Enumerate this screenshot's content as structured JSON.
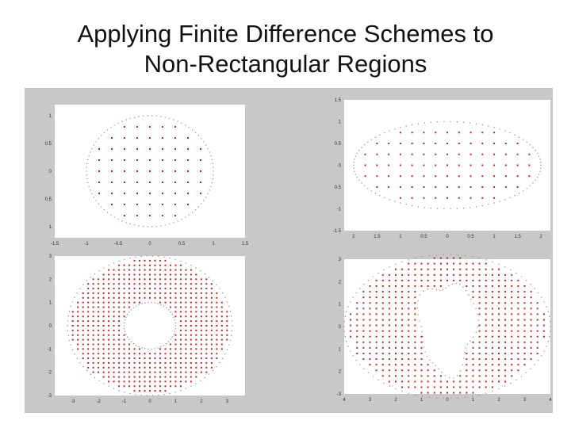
{
  "slide": {
    "title_line1": "Applying Finite Difference Schemes to",
    "title_line2": "Non-Rectangular Regions"
  },
  "colors": {
    "figure_background": "#c8c8c8",
    "axes_background": "#ffffff",
    "boundary_points": "#8e8e8e",
    "grid_points": "#cc2222",
    "tick_text": "#333333"
  },
  "chart_data": [
    {
      "type": "scatter",
      "name_shown": false,
      "region": "circle",
      "outer": {
        "shape": "circle",
        "rx": 1,
        "ry": 1
      },
      "inner": null,
      "xlim": [
        -1.5,
        1.5
      ],
      "ylim": [
        -1.2,
        1.2
      ],
      "grid_spacing": [
        0.2,
        0.2
      ],
      "x_ticks": [
        "-1.5",
        "-1",
        "-0.5",
        "0",
        "0.5",
        "1",
        "1.5"
      ],
      "x_tick_values": [
        -1.5,
        -1,
        -0.5,
        0,
        0.5,
        1,
        1.5
      ],
      "y_ticks": [
        "1",
        "0.5",
        "0",
        "0.5",
        "1"
      ],
      "y_tick_values": [
        1,
        0.5,
        0,
        -0.5,
        -1
      ]
    },
    {
      "type": "scatter",
      "region": "ellipse",
      "outer": {
        "shape": "ellipse",
        "rx": 2,
        "ry": 1
      },
      "inner": null,
      "xlim": [
        -2.2,
        2.2
      ],
      "ylim": [
        -1.5,
        1.5
      ],
      "grid_spacing": [
        0.25,
        0.25
      ],
      "x_ticks": [
        "2",
        "1.5",
        "1",
        "0.5",
        "0",
        "0.5",
        "1",
        "1.5",
        "2"
      ],
      "x_tick_values": [
        -2,
        -1.5,
        -1,
        -0.5,
        0,
        0.5,
        1,
        1.5,
        2
      ],
      "y_ticks": [
        "1.5",
        "1",
        "0.5",
        "0",
        "0.5",
        "-1",
        "-1.5"
      ],
      "y_tick_values": [
        1.5,
        1,
        0.5,
        0,
        -0.5,
        -1,
        -1.5
      ]
    },
    {
      "type": "scatter",
      "region": "annulus",
      "outer": {
        "shape": "ellipse",
        "rx": 3.2,
        "ry": 3
      },
      "inner": {
        "shape": "circle",
        "rx": 1,
        "ry": 1
      },
      "xlim": [
        -3.7,
        3.7
      ],
      "ylim": [
        -3,
        3
      ],
      "grid_spacing": [
        0.2,
        0.2
      ],
      "x_ticks": [
        "-3",
        "-2",
        "-1",
        "0",
        "1",
        "2",
        "3"
      ],
      "x_tick_values": [
        -3,
        -2,
        -1,
        0,
        1,
        2,
        3
      ],
      "y_ticks": [
        "3",
        "2",
        "1",
        "0",
        "-1",
        "-2",
        "-3"
      ],
      "y_tick_values": [
        3,
        2,
        1,
        0,
        -1,
        -2,
        -3
      ]
    },
    {
      "type": "scatter",
      "region": "ellipse with irregular hole",
      "outer": {
        "shape": "ellipse",
        "rx": 4,
        "ry": 3.2
      },
      "inner": {
        "shape": "irregular",
        "rx": 1.1,
        "ry": 2
      },
      "xlim": [
        -4,
        4
      ],
      "ylim": [
        -3,
        3
      ],
      "grid_spacing": [
        0.25,
        0.25
      ],
      "x_ticks": [
        "4",
        "3",
        "2",
        "1",
        "0",
        "1",
        "2",
        "3",
        "4"
      ],
      "x_tick_values": [
        -4,
        -3,
        -2,
        -1,
        0,
        1,
        2,
        3,
        4
      ],
      "y_ticks": [
        "3",
        "2",
        "1",
        "0",
        "1",
        "2",
        "-3"
      ],
      "y_tick_values": [
        3,
        2,
        1,
        0,
        -1,
        -2,
        -3
      ]
    }
  ]
}
